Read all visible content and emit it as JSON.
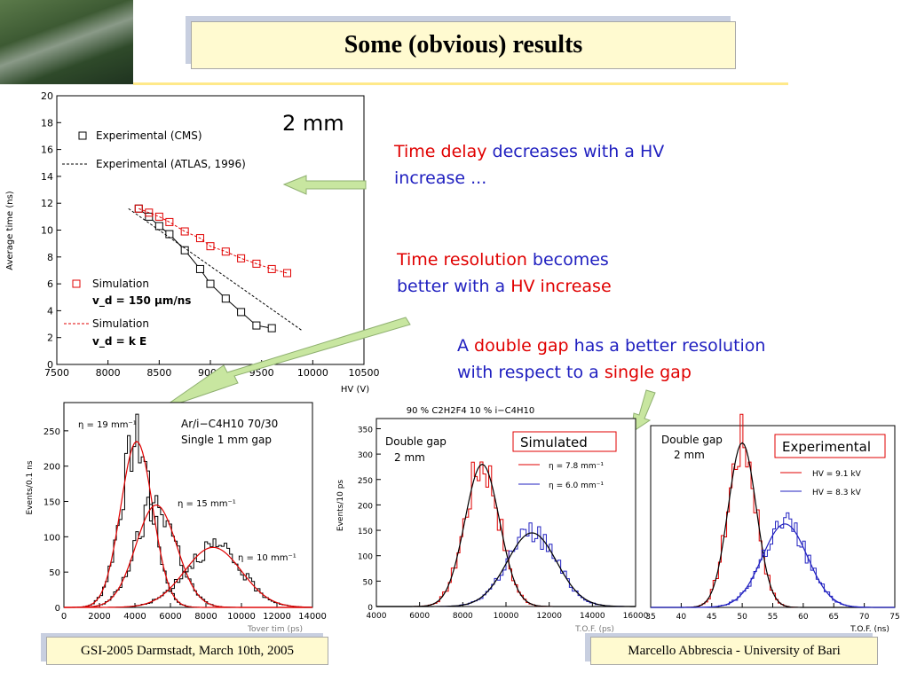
{
  "title": "Some (obvious) results",
  "notes": {
    "n1": {
      "a": "Time delay",
      "b": " decreases with a HV",
      "c": "increase ..."
    },
    "n2": {
      "a": "Time resolution",
      "b": " becomes",
      "c": "better with a ",
      "d": "HV increase"
    },
    "n3": {
      "a": "A ",
      "b": "double gap",
      "c": " has a better resolution",
      "d": "with respect to a ",
      "e": "single gap"
    }
  },
  "footer": {
    "left": "GSI-2005 Darmstadt, March 10th, 2005",
    "right": "Marcello Abbrescia - University of Bari"
  },
  "colors": {
    "red": "#e00000",
    "blue": "#2020c0",
    "arrow": "#c8e6a0"
  },
  "chart_data": [
    {
      "type": "line",
      "ylabel": "Average time (ns)",
      "xlabel": "HV (V)",
      "annotation": "2 mm",
      "xlim": [
        7500,
        10500
      ],
      "ylim": [
        0,
        20
      ],
      "xticks": [
        "7500",
        "8000",
        "8500",
        "9000",
        "9500",
        "10000",
        "10500"
      ],
      "yticks": [
        "0",
        "2",
        "4",
        "6",
        "8",
        "10",
        "12",
        "14",
        "16",
        "18",
        "20"
      ],
      "legend": {
        "cms": "Experimental (CMS)",
        "atlas": "Experimental (ATLAS, 1996)",
        "sim1": "Simulation",
        "sim1b": "v_d = 150 μm/ns",
        "sim2": "Simulation",
        "sim2b": "v_d = k E"
      },
      "series": [
        {
          "name": "Experimental (CMS)",
          "x": [
            8300,
            8400,
            8500,
            8600,
            8750,
            8900,
            9000,
            9150,
            9300,
            9450,
            9600
          ],
          "y": [
            11.6,
            11.0,
            10.3,
            9.7,
            8.5,
            7.1,
            6.0,
            4.9,
            3.9,
            2.9,
            2.7
          ]
        },
        {
          "name": "Simulation",
          "x": [
            8300,
            8400,
            8500,
            8600,
            8750,
            8900,
            9000,
            9150,
            9300,
            9450,
            9600,
            9750
          ],
          "y": [
            11.6,
            11.3,
            11.0,
            10.6,
            9.9,
            9.4,
            8.8,
            8.4,
            7.9,
            7.5,
            7.1,
            6.8
          ]
        },
        {
          "name": "Experimental (ATLAS, 1996)",
          "x": [
            8200,
            9900
          ],
          "y": [
            11.6,
            2.5
          ]
        }
      ]
    },
    {
      "type": "line",
      "ylabel": "Events/0.1 ns",
      "xlabel": "Tover tim (ps)",
      "xlim": [
        0,
        14000
      ],
      "ylim": [
        0,
        290
      ],
      "xticks": [
        "0",
        "2000",
        "4000",
        "6000",
        "8000",
        "10000",
        "12000",
        "14000"
      ],
      "yticks": [
        "0",
        "50",
        "100",
        "150",
        "200",
        "250"
      ],
      "labels": {
        "gas": "Ar/i−C4H10 70/30",
        "gap": "Single 1 mm gap",
        "e19": "η = 19 mm⁻¹",
        "e15": "η = 15 mm⁻¹",
        "e10": "η = 10 mm⁻¹"
      },
      "series": [
        {
          "name": "η = 19 mm⁻¹",
          "mean": 4100,
          "sigma": 900,
          "amp": 235
        },
        {
          "name": "η = 15 mm⁻¹",
          "mean": 5200,
          "sigma": 1150,
          "amp": 145
        },
        {
          "name": "η = 10 mm⁻¹",
          "mean": 8400,
          "sigma": 1600,
          "amp": 85
        }
      ]
    },
    {
      "type": "line",
      "title": "90 % C2H2F4  10 % i−C4H10",
      "ylabel": "Events/10 ps",
      "xlabel": "T.O.F. (ps)",
      "xlim": [
        4000,
        16000
      ],
      "ylim": [
        0,
        370
      ],
      "xticks": [
        "4000",
        "6000",
        "8000",
        "10000",
        "12000",
        "14000",
        "16000"
      ],
      "yticks": [
        "0",
        "50",
        "100",
        "150",
        "200",
        "250",
        "300",
        "350"
      ],
      "labels": {
        "dg1": "Double gap",
        "dg2": "2 mm",
        "box": "Simulated",
        "l1": "η = 7.8 mm⁻¹",
        "l2": "η = 6.0 mm⁻¹"
      },
      "series": [
        {
          "name": "η = 7.8 mm⁻¹",
          "mean": 8900,
          "sigma": 800,
          "amp": 280
        },
        {
          "name": "η = 6.0 mm⁻¹",
          "mean": 11200,
          "sigma": 1150,
          "amp": 145
        }
      ]
    },
    {
      "type": "line",
      "ylabel": "",
      "xlabel": "T.O.F. (ns)",
      "xlim": [
        35,
        75
      ],
      "ylim": [
        0,
        370
      ],
      "xticks": [
        "35",
        "40",
        "45",
        "50",
        "55",
        "60",
        "65",
        "70",
        "75"
      ],
      "labels": {
        "dg1": "Double gap",
        "dg2": "2 mm",
        "box": "Experimental",
        "l1": "HV = 9.1 kV",
        "l2": "HV = 8.3 kV"
      },
      "series": [
        {
          "name": "HV = 9.1 kV",
          "mean": 50,
          "sigma": 2.3,
          "amp": 335
        },
        {
          "name": "HV = 8.3 kV",
          "mean": 57,
          "sigma": 3.7,
          "amp": 170
        }
      ]
    }
  ]
}
